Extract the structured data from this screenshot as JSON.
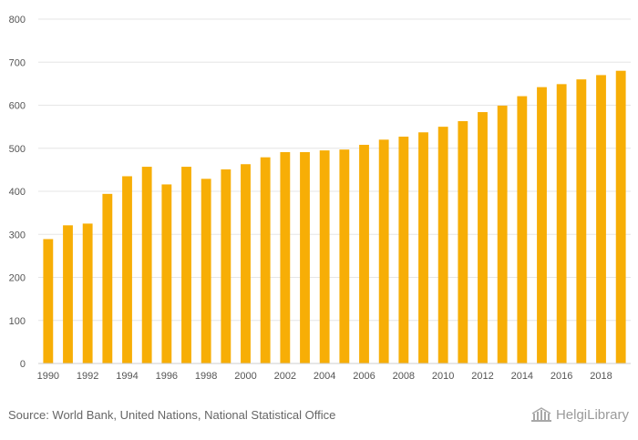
{
  "chart_data": {
    "type": "bar",
    "title": "",
    "xlabel": "",
    "ylabel": "",
    "ylim": [
      0,
      800
    ],
    "yticks": [
      0,
      100,
      200,
      300,
      400,
      500,
      600,
      700,
      800
    ],
    "xtick_labels": [
      "1990",
      "1992",
      "1994",
      "1996",
      "1998",
      "2000",
      "2002",
      "2004",
      "2006",
      "2008",
      "2010",
      "2012",
      "2014",
      "2016",
      "2018"
    ],
    "categories": [
      "1990",
      "1991",
      "1992",
      "1993",
      "1994",
      "1995",
      "1996",
      "1997",
      "1998",
      "1999",
      "2000",
      "2001",
      "2002",
      "2003",
      "2004",
      "2005",
      "2006",
      "2007",
      "2008",
      "2009",
      "2010",
      "2011",
      "2012",
      "2013",
      "2014",
      "2015",
      "2016",
      "2017",
      "2018",
      "2019"
    ],
    "values": [
      289,
      321,
      325,
      394,
      435,
      457,
      416,
      457,
      429,
      451,
      463,
      479,
      491,
      491,
      495,
      497,
      508,
      520,
      527,
      537,
      550,
      563,
      584,
      599,
      621,
      642,
      649,
      660,
      670,
      680
    ],
    "bar_color": "#f7ae06",
    "grid": true
  },
  "footer": {
    "source": "Source: World Bank, United Nations, National Statistical Office",
    "logo_text": "HelgiLibrary",
    "logo_icon": "library-building-icon"
  }
}
